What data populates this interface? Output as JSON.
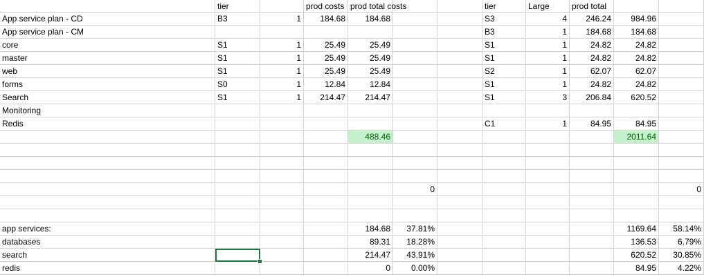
{
  "colors": {
    "highlight_fill": "#c6efce",
    "highlight_text": "#006100",
    "selection": "#217346",
    "gridline": "#d4d4d4"
  },
  "rows": [
    {
      "cells": [
        {
          "col": 1,
          "text": "tier",
          "align": "l"
        },
        {
          "col": 3,
          "text": "prod costs",
          "align": "l"
        },
        {
          "col": 4,
          "text": "prod total costs",
          "align": "l"
        },
        {
          "col": 7,
          "text": "tier",
          "align": "l"
        },
        {
          "col": 8,
          "text": "Large",
          "align": "l"
        },
        {
          "col": 9,
          "text": "prod total",
          "align": "l"
        }
      ]
    },
    {
      "cells": [
        {
          "col": 0,
          "text": "App service plan - CD",
          "align": "l"
        },
        {
          "col": 1,
          "text": "B3",
          "align": "l"
        },
        {
          "col": 2,
          "text": "1",
          "align": "r"
        },
        {
          "col": 3,
          "text": "184.68",
          "align": "r"
        },
        {
          "col": 4,
          "text": "184.68",
          "align": "r"
        },
        {
          "col": 7,
          "text": "S3",
          "align": "l"
        },
        {
          "col": 8,
          "text": "4",
          "align": "r"
        },
        {
          "col": 9,
          "text": "246.24",
          "align": "r"
        },
        {
          "col": 10,
          "text": "984.96",
          "align": "r"
        }
      ]
    },
    {
      "cells": [
        {
          "col": 0,
          "text": "App service plan - CM",
          "align": "l"
        },
        {
          "col": 7,
          "text": "B3",
          "align": "l"
        },
        {
          "col": 8,
          "text": "1",
          "align": "r"
        },
        {
          "col": 9,
          "text": "184.68",
          "align": "r"
        },
        {
          "col": 10,
          "text": "184.68",
          "align": "r"
        }
      ]
    },
    {
      "cells": [
        {
          "col": 0,
          "text": "core",
          "align": "l"
        },
        {
          "col": 1,
          "text": "S1",
          "align": "l"
        },
        {
          "col": 2,
          "text": "1",
          "align": "r"
        },
        {
          "col": 3,
          "text": "25.49",
          "align": "r"
        },
        {
          "col": 4,
          "text": "25.49",
          "align": "r"
        },
        {
          "col": 7,
          "text": "S1",
          "align": "l"
        },
        {
          "col": 8,
          "text": "1",
          "align": "r"
        },
        {
          "col": 9,
          "text": "24.82",
          "align": "r"
        },
        {
          "col": 10,
          "text": "24.82",
          "align": "r"
        }
      ]
    },
    {
      "cells": [
        {
          "col": 0,
          "text": "master",
          "align": "l"
        },
        {
          "col": 1,
          "text": "S1",
          "align": "l"
        },
        {
          "col": 2,
          "text": "1",
          "align": "r"
        },
        {
          "col": 3,
          "text": "25.49",
          "align": "r"
        },
        {
          "col": 4,
          "text": "25.49",
          "align": "r"
        },
        {
          "col": 7,
          "text": "S1",
          "align": "l"
        },
        {
          "col": 8,
          "text": "1",
          "align": "r"
        },
        {
          "col": 9,
          "text": "24.82",
          "align": "r"
        },
        {
          "col": 10,
          "text": "24.82",
          "align": "r"
        }
      ]
    },
    {
      "cells": [
        {
          "col": 0,
          "text": "web",
          "align": "l"
        },
        {
          "col": 1,
          "text": "S1",
          "align": "l"
        },
        {
          "col": 2,
          "text": "1",
          "align": "r"
        },
        {
          "col": 3,
          "text": "25.49",
          "align": "r"
        },
        {
          "col": 4,
          "text": "25.49",
          "align": "r"
        },
        {
          "col": 7,
          "text": "S2",
          "align": "l"
        },
        {
          "col": 8,
          "text": "1",
          "align": "r"
        },
        {
          "col": 9,
          "text": "62.07",
          "align": "r"
        },
        {
          "col": 10,
          "text": "62.07",
          "align": "r"
        }
      ]
    },
    {
      "cells": [
        {
          "col": 0,
          "text": "forms",
          "align": "l"
        },
        {
          "col": 1,
          "text": "S0",
          "align": "l"
        },
        {
          "col": 2,
          "text": "1",
          "align": "r"
        },
        {
          "col": 3,
          "text": "12.84",
          "align": "r"
        },
        {
          "col": 4,
          "text": "12.84",
          "align": "r"
        },
        {
          "col": 7,
          "text": "S1",
          "align": "l"
        },
        {
          "col": 8,
          "text": "1",
          "align": "r"
        },
        {
          "col": 9,
          "text": "24.82",
          "align": "r"
        },
        {
          "col": 10,
          "text": "24.82",
          "align": "r"
        }
      ]
    },
    {
      "cells": [
        {
          "col": 0,
          "text": "Search",
          "align": "l"
        },
        {
          "col": 1,
          "text": "S1",
          "align": "l"
        },
        {
          "col": 2,
          "text": "1",
          "align": "r"
        },
        {
          "col": 3,
          "text": "214.47",
          "align": "r"
        },
        {
          "col": 4,
          "text": "214.47",
          "align": "r"
        },
        {
          "col": 7,
          "text": "S1",
          "align": "l"
        },
        {
          "col": 8,
          "text": "3",
          "align": "r"
        },
        {
          "col": 9,
          "text": "206.84",
          "align": "r"
        },
        {
          "col": 10,
          "text": "620.52",
          "align": "r"
        }
      ]
    },
    {
      "cells": [
        {
          "col": 0,
          "text": "Monitoring",
          "align": "l"
        }
      ]
    },
    {
      "cells": [
        {
          "col": 0,
          "text": "Redis",
          "align": "l"
        },
        {
          "col": 7,
          "text": "C1",
          "align": "l"
        },
        {
          "col": 8,
          "text": "1",
          "align": "r"
        },
        {
          "col": 9,
          "text": "84.95",
          "align": "r"
        },
        {
          "col": 10,
          "text": "84.95",
          "align": "r"
        }
      ]
    },
    {
      "cells": [
        {
          "col": 4,
          "text": "488.46",
          "align": "r",
          "highlight": true
        },
        {
          "col": 10,
          "text": "2011.64",
          "align": "r",
          "highlight": true
        }
      ]
    },
    {
      "cells": []
    },
    {
      "cells": []
    },
    {
      "cells": []
    },
    {
      "cells": [
        {
          "col": 5,
          "text": "0",
          "align": "r"
        },
        {
          "col": 11,
          "text": "0",
          "align": "r"
        }
      ]
    },
    {
      "cells": []
    },
    {
      "cells": []
    },
    {
      "cells": [
        {
          "col": 0,
          "text": "app services:",
          "align": "l"
        },
        {
          "col": 4,
          "text": "184.68",
          "align": "r"
        },
        {
          "col": 5,
          "text": "37.81%",
          "align": "r"
        },
        {
          "col": 10,
          "text": "1169.64",
          "align": "r"
        },
        {
          "col": 11,
          "text": "58.14%",
          "align": "r"
        }
      ]
    },
    {
      "cells": [
        {
          "col": 0,
          "text": "databases",
          "align": "l"
        },
        {
          "col": 4,
          "text": "89.31",
          "align": "r"
        },
        {
          "col": 5,
          "text": "18.28%",
          "align": "r"
        },
        {
          "col": 10,
          "text": "136.53",
          "align": "r"
        },
        {
          "col": 11,
          "text": "6.79%",
          "align": "r"
        }
      ]
    },
    {
      "cells": [
        {
          "col": 0,
          "text": "search",
          "align": "l"
        },
        {
          "col": 4,
          "text": "214.47",
          "align": "r"
        },
        {
          "col": 5,
          "text": "43.91%",
          "align": "r"
        },
        {
          "col": 10,
          "text": "620.52",
          "align": "r"
        },
        {
          "col": 11,
          "text": "30.85%",
          "align": "r"
        }
      ]
    },
    {
      "cells": [
        {
          "col": 0,
          "text": "redis",
          "align": "l"
        },
        {
          "col": 4,
          "text": "0",
          "align": "r"
        },
        {
          "col": 5,
          "text": "0.00%",
          "align": "r"
        },
        {
          "col": 10,
          "text": "84.95",
          "align": "r"
        },
        {
          "col": 11,
          "text": "4.22%",
          "align": "r"
        }
      ]
    }
  ],
  "selected_cell": {
    "row": 19,
    "col": 1
  }
}
